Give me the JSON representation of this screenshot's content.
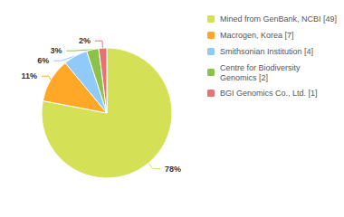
{
  "chart_data": {
    "type": "pie",
    "categories": [
      "Mined from GenBank, NCBI [49]",
      "Macrogen, Korea [7]",
      "Smithsonian Institution [4]",
      "Centre for Biodiversity\nGenomics [2]",
      "BGI Genomics Co., Ltd. [1]"
    ],
    "values": [
      78,
      11,
      6,
      3,
      2
    ],
    "value_labels": [
      "78%",
      "11%",
      "6%",
      "3%",
      "2%"
    ],
    "colors": [
      "#d4e157",
      "#ffa726",
      "#90caf9",
      "#8bc34a",
      "#e57373"
    ],
    "data_labels": true,
    "legend": "upper right"
  }
}
